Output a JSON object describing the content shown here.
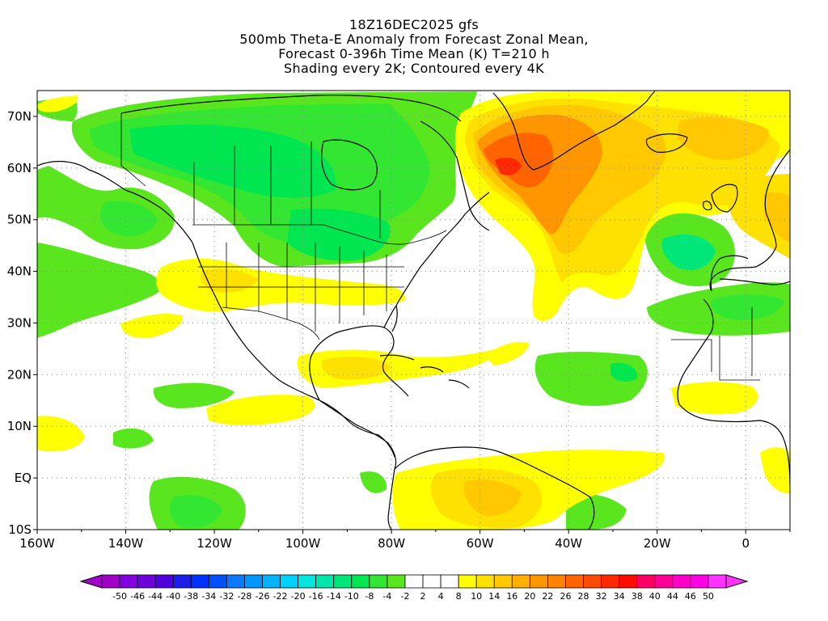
{
  "title": {
    "line1": "18Z16DEC2025 gfs",
    "line2": "500mb Theta-E Anomaly from Forecast Zonal Mean,",
    "line3": "Forecast 0-396h Time Mean (K) T=210 h",
    "line4": "Shading every 2K; Contoured every 4K"
  },
  "map": {
    "projection": "cylindrical equidistant",
    "lon_range": [
      -160,
      10
    ],
    "lat_range": [
      -10,
      75
    ],
    "grid": "dotted",
    "lat_ticks": [
      "70N",
      "60N",
      "50N",
      "40N",
      "30N",
      "20N",
      "10N",
      "EQ",
      "10S"
    ],
    "lon_ticks": [
      "160W",
      "140W",
      "120W",
      "100W",
      "80W",
      "60W",
      "40W",
      "20W",
      "0"
    ],
    "coastline_color": "#000000"
  },
  "colorbar": {
    "labels": [
      "-50",
      "-46",
      "-44",
      "-40",
      "-38",
      "-34",
      "-32",
      "-28",
      "-26",
      "-22",
      "-20",
      "-16",
      "-14",
      "-10",
      "-8",
      "-4",
      "-2",
      "2",
      "4",
      "8",
      "10",
      "14",
      "16",
      "20",
      "22",
      "26",
      "28",
      "32",
      "34",
      "38",
      "40",
      "44",
      "46",
      "50"
    ],
    "colors": [
      "#a000c8",
      "#8200dc",
      "#6e00dc",
      "#5000dc",
      "#1e1eeb",
      "#0032ff",
      "#0050ff",
      "#0a78ff",
      "#0096ff",
      "#00b4ff",
      "#00d2ff",
      "#00e6dc",
      "#00e6aa",
      "#00e678",
      "#00e650",
      "#32e632",
      "#5ae61e",
      "#ffffff",
      "#ffffff",
      "#ffffff",
      "#ffff00",
      "#ffe100",
      "#ffc800",
      "#ffaf00",
      "#ff9600",
      "#ff8200",
      "#ff6400",
      "#ff4b00",
      "#ff2800",
      "#ff0a00",
      "#ff0064",
      "#ff0096",
      "#ff00c8",
      "#ff00e6",
      "#ff32ff"
    ]
  },
  "anomaly_colors": {
    "green_light": "#5ae61e",
    "green": "#32e632",
    "green_dark": "#00e650",
    "teal": "#00e678",
    "yellow": "#ffff00",
    "gold": "#ffe100",
    "orange_light": "#ffc800",
    "orange": "#ffaf00",
    "orange_dark": "#ff8200",
    "red_orange": "#ff6400",
    "red": "#ff2800"
  }
}
